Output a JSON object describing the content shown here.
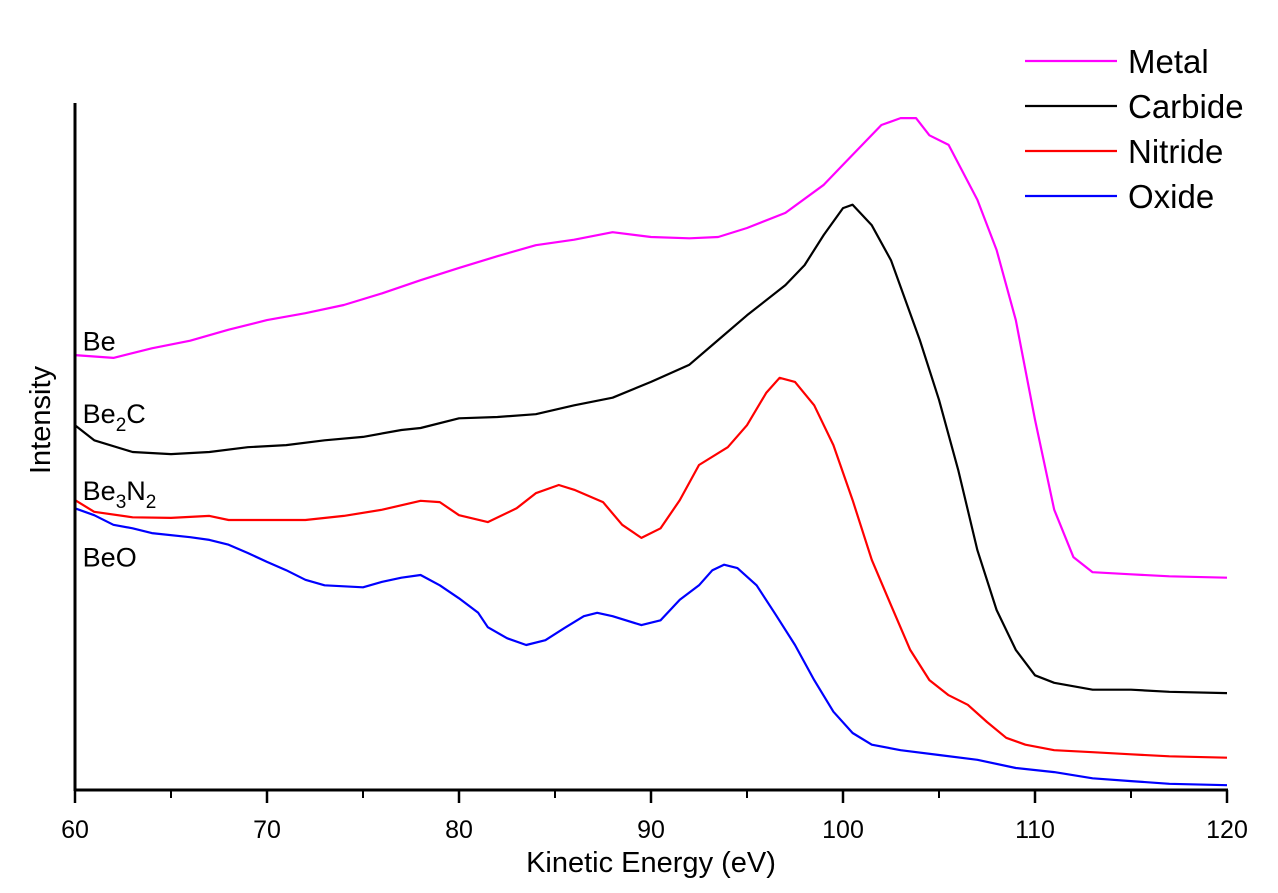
{
  "chart_data": {
    "type": "line",
    "title": "",
    "xlabel": "Kinetic Energy (eV)",
    "ylabel": "Intensity",
    "xlim": [
      60,
      120
    ],
    "ylim": [
      0,
      100
    ],
    "x_ticks": [
      60,
      70,
      80,
      90,
      100,
      110,
      120
    ],
    "x_minor_ticks": [
      65,
      75,
      85,
      95,
      105,
      115
    ],
    "y_ticks": [],
    "grid": false,
    "legend_placement": "top-right",
    "series": [
      {
        "name": "Metal",
        "color": "#ff00ff",
        "x": [
          60,
          62,
          64,
          66,
          68,
          70,
          72,
          74,
          76,
          78,
          80,
          82,
          84,
          86,
          88,
          90,
          92,
          93.5,
          95,
          97,
          99,
          100,
          101,
          102,
          103,
          103.8,
          104.5,
          105.5,
          107,
          108,
          109,
          110,
          111,
          112,
          113,
          115,
          117,
          120
        ],
        "y": [
          63.3,
          62.9,
          64.3,
          65.4,
          67.0,
          68.4,
          69.4,
          70.6,
          72.3,
          74.2,
          76.0,
          77.7,
          79.3,
          80.1,
          81.2,
          80.5,
          80.3,
          80.5,
          81.8,
          84.0,
          88.1,
          91.0,
          93.9,
          96.8,
          97.8,
          97.8,
          95.3,
          93.9,
          85.9,
          78.6,
          68.4,
          53.9,
          40.8,
          33.9,
          31.7,
          31.4,
          31.1,
          30.9
        ]
      },
      {
        "name": "Carbide",
        "color": "#000000",
        "x": [
          60,
          61,
          63,
          65,
          67,
          69,
          71,
          73,
          75,
          77,
          78,
          80,
          82,
          84,
          86,
          88,
          90,
          92,
          93.5,
          95,
          97,
          98,
          99,
          100,
          100.5,
          101.5,
          102.5,
          104,
          105,
          106,
          107,
          108,
          109,
          110,
          111,
          113,
          115,
          117,
          120
        ],
        "y": [
          53.1,
          50.9,
          49.2,
          48.9,
          49.2,
          49.9,
          50.2,
          50.9,
          51.4,
          52.4,
          52.7,
          54.1,
          54.3,
          54.7,
          56.0,
          57.1,
          59.4,
          61.9,
          65.5,
          69.1,
          73.5,
          76.4,
          80.8,
          84.7,
          85.2,
          82.2,
          77.1,
          65.5,
          56.8,
          46.6,
          34.9,
          26.2,
          20.4,
          16.7,
          15.6,
          14.6,
          14.6,
          14.3,
          14.1
        ]
      },
      {
        "name": "Nitride",
        "color": "#ff0000",
        "x": [
          60,
          61,
          63,
          65,
          67,
          68,
          70,
          72,
          74,
          76,
          78,
          79,
          80,
          81.5,
          83,
          84,
          85.2,
          86,
          87.5,
          88.5,
          89.5,
          90.5,
          91.5,
          92.5,
          94,
          95,
          96,
          96.7,
          97.5,
          98.5,
          99.5,
          100.5,
          101.5,
          102.5,
          103.5,
          104.5,
          105.5,
          106.5,
          107.5,
          108.5,
          109.5,
          111,
          113,
          115,
          117,
          120
        ],
        "y": [
          42.2,
          40.5,
          39.7,
          39.6,
          39.9,
          39.3,
          39.3,
          39.3,
          39.9,
          40.8,
          42.1,
          41.9,
          40.0,
          39.0,
          41.0,
          43.2,
          44.4,
          43.7,
          41.9,
          38.6,
          36.7,
          38.1,
          42.2,
          47.3,
          49.9,
          53.1,
          57.8,
          60.0,
          59.4,
          56.0,
          50.2,
          42.2,
          33.5,
          26.9,
          20.4,
          16.0,
          13.8,
          12.4,
          9.9,
          7.6,
          6.6,
          5.8,
          5.5,
          5.2,
          4.9,
          4.7
        ]
      },
      {
        "name": "Oxide",
        "color": "#0000ff",
        "x": [
          60,
          61,
          62,
          63,
          64,
          66,
          67,
          68,
          69,
          70,
          71,
          72,
          73,
          75,
          76,
          77,
          78,
          79,
          80,
          81,
          81.5,
          82.5,
          83.5,
          84.5,
          85.5,
          86.5,
          87.2,
          88,
          89.5,
          90.5,
          91.5,
          92.5,
          93.2,
          93.8,
          94.5,
          95.5,
          96.5,
          97.5,
          98.5,
          99.5,
          100.5,
          101.5,
          103,
          105,
          107,
          109,
          111,
          113,
          115,
          117,
          120
        ],
        "y": [
          41.0,
          40.0,
          38.6,
          38.1,
          37.4,
          36.8,
          36.4,
          35.7,
          34.5,
          33.2,
          32.0,
          30.6,
          29.8,
          29.5,
          30.3,
          30.9,
          31.3,
          29.8,
          27.9,
          25.8,
          23.7,
          22.1,
          21.1,
          21.8,
          23.6,
          25.3,
          25.8,
          25.3,
          24.0,
          24.7,
          27.7,
          29.8,
          32.0,
          32.8,
          32.3,
          29.8,
          25.5,
          21.1,
          16.0,
          11.4,
          8.3,
          6.6,
          5.8,
          5.1,
          4.4,
          3.2,
          2.6,
          1.7,
          1.3,
          0.9,
          0.7
        ]
      }
    ],
    "annotations": [
      {
        "x": 60.4,
        "y": 64.0,
        "parts": [
          {
            "t": "Be"
          }
        ]
      },
      {
        "x": 60.4,
        "y": 53.4,
        "parts": [
          {
            "t": "Be"
          },
          {
            "t": "2",
            "sub": true
          },
          {
            "t": "C"
          }
        ]
      },
      {
        "x": 60.4,
        "y": 42.2,
        "parts": [
          {
            "t": "Be"
          },
          {
            "t": "3",
            "sub": true
          },
          {
            "t": "N"
          },
          {
            "t": "2",
            "sub": true
          }
        ]
      },
      {
        "x": 60.4,
        "y": 32.5,
        "parts": [
          {
            "t": "BeO"
          }
        ]
      }
    ]
  }
}
